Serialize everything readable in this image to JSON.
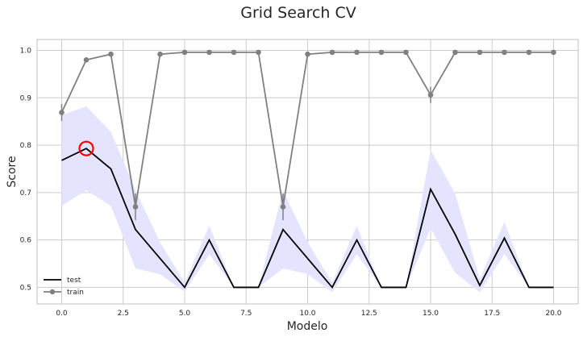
{
  "chart_data": {
    "type": "line",
    "title": "Grid Search CV",
    "xlabel": "Modelo",
    "ylabel": "Score",
    "xlim": [
      -1,
      21
    ],
    "ylim": [
      0.465,
      1.023
    ],
    "xticks": [
      0.0,
      2.5,
      5.0,
      7.5,
      10.0,
      12.5,
      15.0,
      17.5,
      20.0
    ],
    "xtick_labels": [
      "0.0",
      "2.5",
      "5.0",
      "7.5",
      "10.0",
      "12.5",
      "15.0",
      "17.5",
      "20.0"
    ],
    "yticks": [
      0.5,
      0.6,
      0.7,
      0.8,
      0.9,
      1.0
    ],
    "ytick_labels": [
      "0.5",
      "0.6",
      "0.7",
      "0.8",
      "0.9",
      "1.0"
    ],
    "grid": true,
    "legend_position": "lower-left",
    "x": [
      0,
      1,
      2,
      3,
      4,
      5,
      6,
      7,
      8,
      9,
      10,
      11,
      12,
      13,
      14,
      15,
      16,
      17,
      18,
      19,
      20
    ],
    "series": [
      {
        "name": "test",
        "color": "#000000",
        "values": [
          0.768,
          0.793,
          0.75,
          0.622,
          0.561,
          0.5,
          0.6,
          0.5,
          0.5,
          0.622,
          0.561,
          0.5,
          0.6,
          0.5,
          0.5,
          0.707,
          0.612,
          0.504,
          0.604,
          0.5,
          0.5
        ],
        "band_lower": [
          0.672,
          0.705,
          0.672,
          0.54,
          0.528,
          0.49,
          0.57,
          0.5,
          0.5,
          0.54,
          0.528,
          0.49,
          0.57,
          0.5,
          0.5,
          0.625,
          0.53,
          0.49,
          0.57,
          0.5,
          0.5
        ],
        "band_upper": [
          0.863,
          0.882,
          0.828,
          0.705,
          0.595,
          0.51,
          0.63,
          0.5,
          0.5,
          0.705,
          0.595,
          0.51,
          0.63,
          0.5,
          0.5,
          0.79,
          0.698,
          0.518,
          0.638,
          0.5,
          0.5
        ],
        "band_color": "#e4e4ff"
      },
      {
        "name": "train",
        "color": "#808080",
        "values": [
          0.869,
          0.98,
          0.992,
          0.67,
          0.992,
          0.996,
          0.996,
          0.996,
          0.996,
          0.67,
          0.992,
          0.996,
          0.996,
          0.996,
          0.996,
          0.906,
          0.996,
          0.996,
          0.996,
          0.996,
          0.996
        ],
        "error": [
          0.018,
          0.004,
          0.003,
          0.028,
          0.003,
          0.002,
          0.002,
          0.002,
          0.002,
          0.028,
          0.003,
          0.002,
          0.002,
          0.002,
          0.002,
          0.017,
          0.002,
          0.002,
          0.002,
          0.002,
          0.002
        ]
      }
    ],
    "highlight": {
      "x": 1,
      "y": 0.793,
      "color": "#ff0000"
    }
  }
}
